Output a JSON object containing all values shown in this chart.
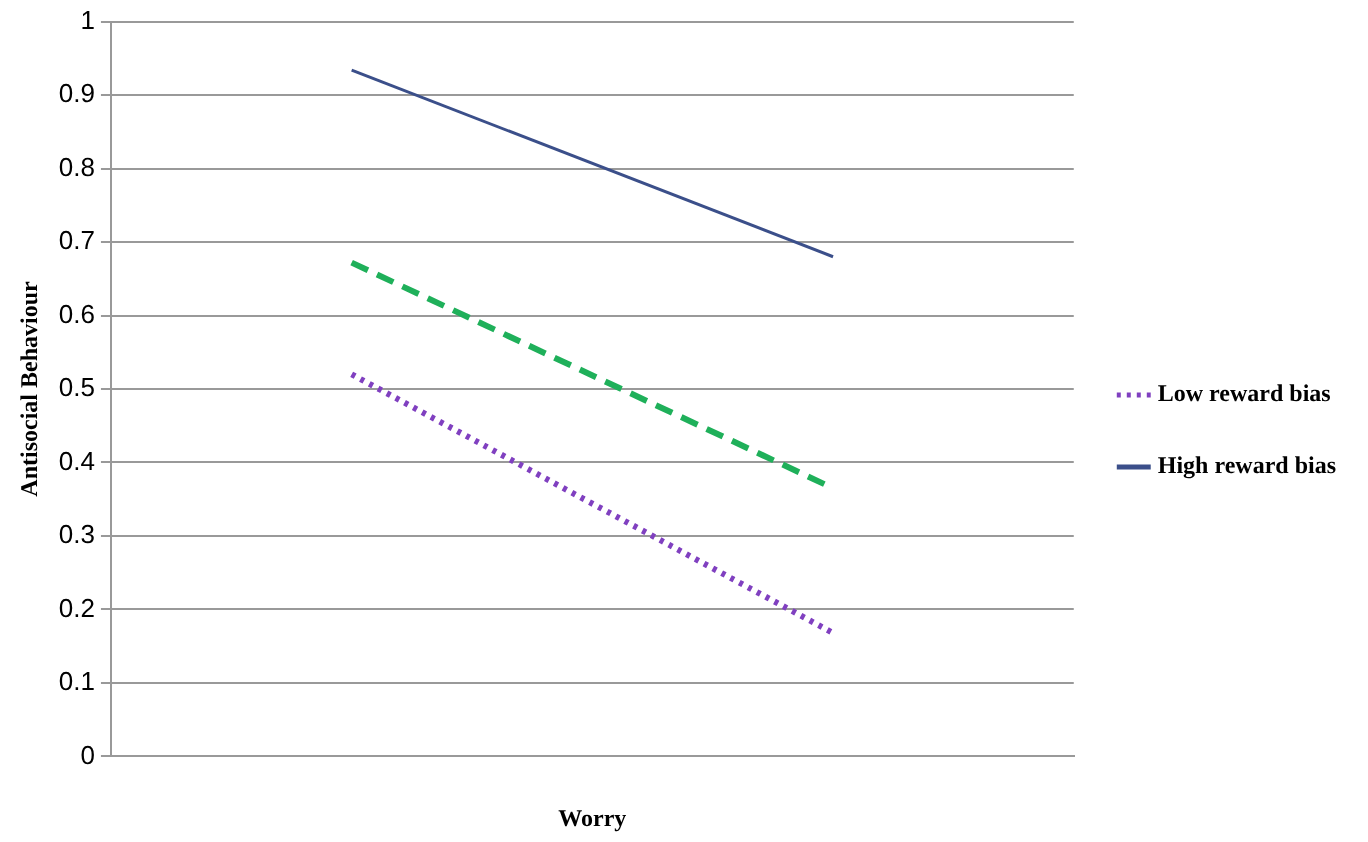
{
  "chart_data": {
    "type": "line",
    "xlabel": "Worry",
    "ylabel": "Antisocial Behaviour",
    "categories": [
      null,
      null
    ],
    "series": [
      {
        "name": "Low reward bias",
        "color": "#8040c0",
        "line_style": "dotted",
        "values": [
          0.52,
          0.168
        ]
      },
      {
        "name": "High reward bias",
        "color": "#3b4f8a",
        "line_style": "solid",
        "values": [
          0.934,
          0.68
        ]
      },
      {
        "color": "#1fb05a",
        "line_style": "dashed",
        "values": [
          0.672,
          0.365
        ]
      }
    ],
    "ylim": [
      0,
      1
    ],
    "yticks": [
      0,
      0.1,
      0.2,
      0.3,
      0.4,
      0.5,
      0.6,
      0.7,
      0.8,
      0.9,
      1
    ],
    "grid": "y",
    "legend": "right",
    "marker": "none"
  }
}
